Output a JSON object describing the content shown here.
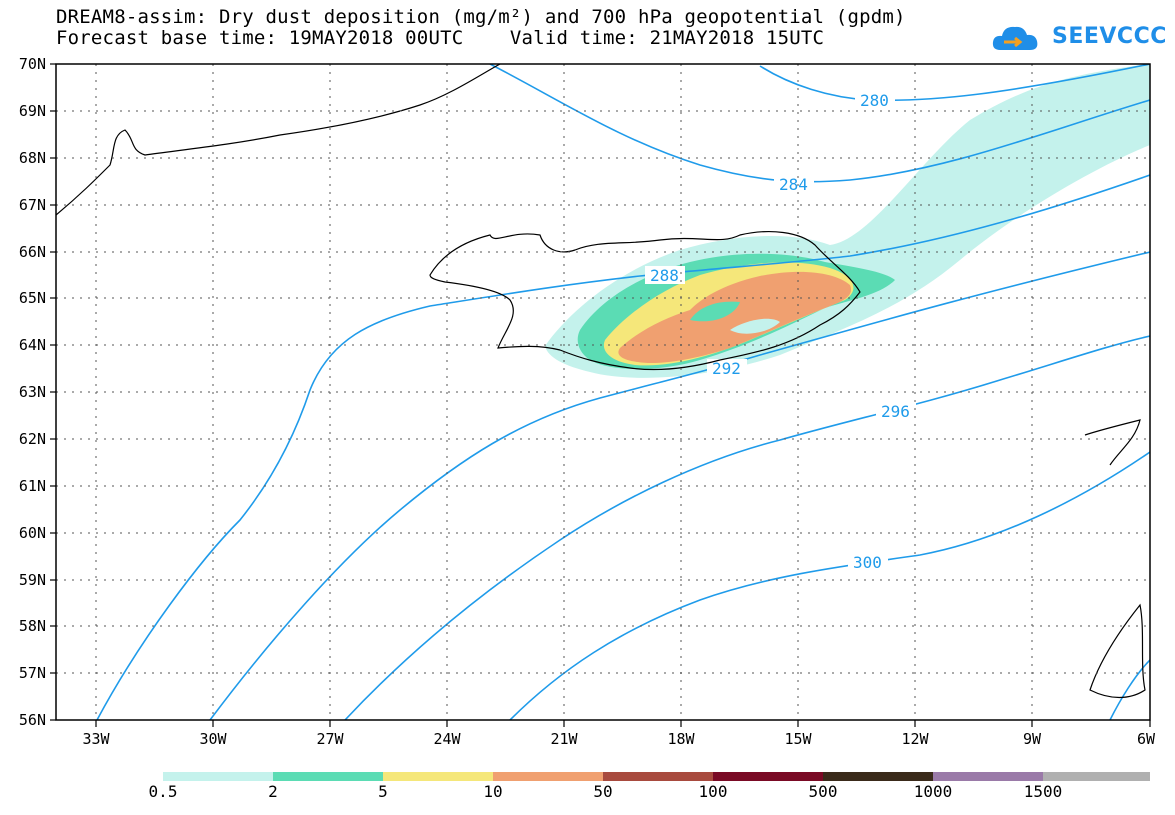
{
  "header": {
    "title_line1": "DREAM8-assim: Dry dust deposition (mg/m²) and 700 hPa geopotential (gpdm)",
    "title_line2": "Forecast base time: 19MAY2018 00UTC    Valid time: 21MAY2018 15UTC",
    "logo_text": "SEEVCCC",
    "logo_icon": "cloud-arrow-icon"
  },
  "map": {
    "lat_labels": [
      "70N",
      "69N",
      "68N",
      "67N",
      "66N",
      "65N",
      "64N",
      "63N",
      "62N",
      "61N",
      "60N",
      "59N",
      "58N",
      "57N",
      "56N"
    ],
    "lon_labels": [
      "33W",
      "30W",
      "27W",
      "24W",
      "21W",
      "18W",
      "15W",
      "12W",
      "9W",
      "6W"
    ],
    "contour_labels": [
      "280",
      "284",
      "288",
      "292",
      "296",
      "300"
    ],
    "contour_color": "#1f9bea",
    "grid": "dotted"
  },
  "colorbar": {
    "labels": [
      "0.5",
      "2",
      "5",
      "10",
      "50",
      "100",
      "500",
      "1000",
      "1500"
    ],
    "colors": [
      "#c4f2ec",
      "#5bdcb4",
      "#f5e77a",
      "#f0a070",
      "#a84a3e",
      "#7a0a25",
      "#3a2a1a",
      "#9a7aa8",
      "#b0b0b0"
    ]
  }
}
